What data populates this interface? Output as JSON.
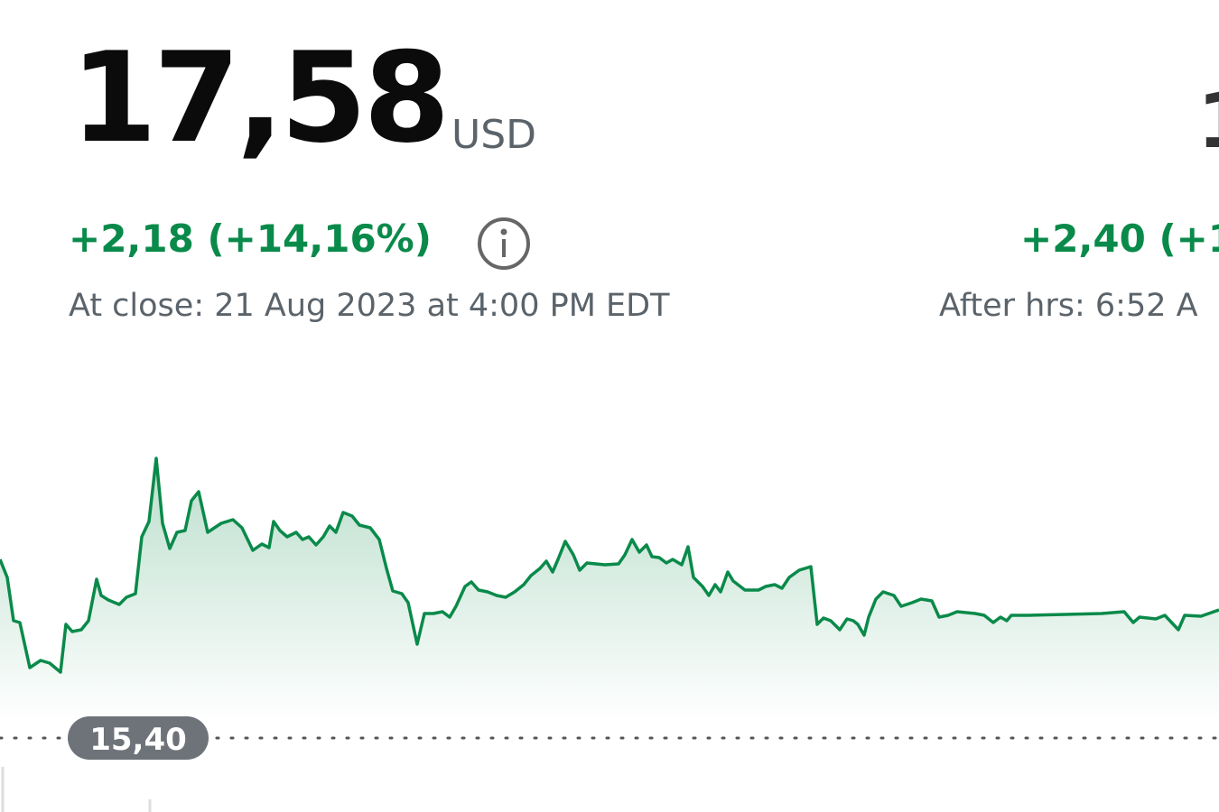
{
  "quote": {
    "price": "17,58",
    "currency": "USD",
    "change": "+2,18 (+14,16%)",
    "close_time": "At close: 21 Aug 2023 at 4:00 PM EDT"
  },
  "after_hours": {
    "price": "1",
    "change": "+2,40 (+1",
    "time": "After hrs: 6:52 A"
  },
  "chart": {
    "previous_close": "15,40"
  }
}
